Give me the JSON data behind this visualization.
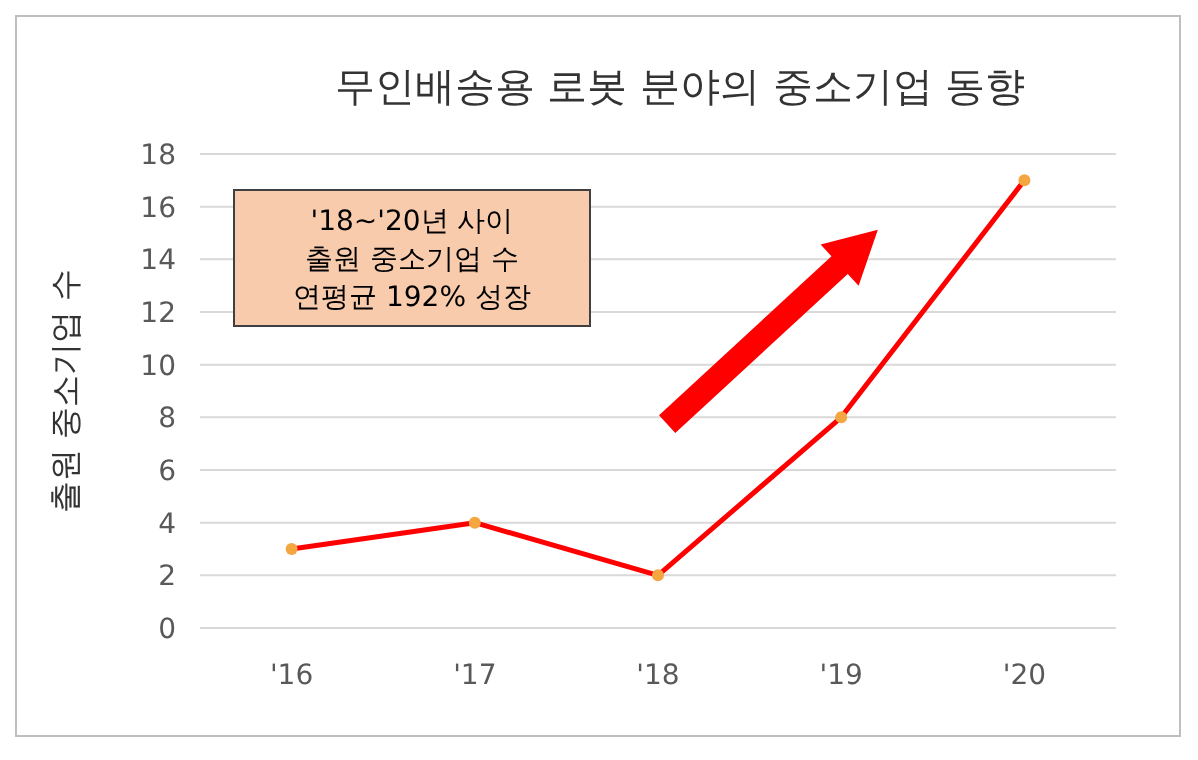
{
  "chart_data": {
    "type": "line",
    "title": "무인배송용 로봇 분야의 중소기업 동향",
    "ylabel": "출원 중소기업 수",
    "categories": [
      "'16",
      "'17",
      "'18",
      "'19",
      "'20"
    ],
    "series": [
      {
        "color": "#ff0000",
        "values": [
          3,
          4,
          2,
          8,
          17
        ]
      }
    ],
    "marker": "circle",
    "ylim": [
      0,
      18
    ],
    "yticks": [
      0,
      2,
      4,
      6,
      8,
      10,
      12,
      14,
      16,
      18
    ],
    "grid": "y",
    "annotations": [
      "'18~'20년 사이\n출원 중소기업 수\n연평균 192% 성장"
    ]
  }
}
